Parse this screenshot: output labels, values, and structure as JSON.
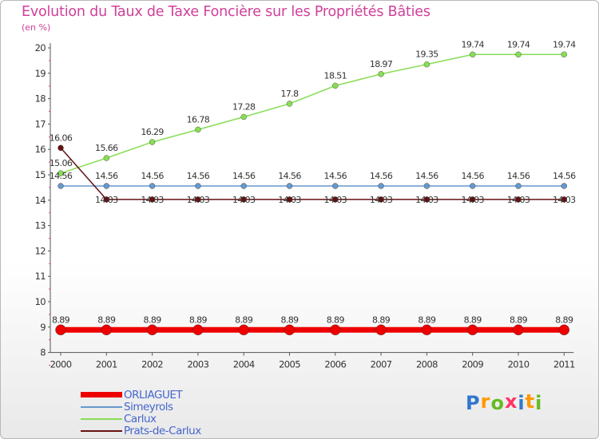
{
  "chart_data": {
    "type": "line",
    "title": "Evolution du Taux de Taxe Foncière sur les Propriétés Bâties",
    "unit_label": "(en %)",
    "xlabel": "",
    "ylabel": "(en %)",
    "categories": [
      "2000",
      "2001",
      "2002",
      "2003",
      "2004",
      "2005",
      "2006",
      "2007",
      "2008",
      "2009",
      "2010",
      "2011"
    ],
    "ylim": [
      8,
      20
    ],
    "yticks": [
      "8",
      "9",
      "10",
      "11",
      "12",
      "13",
      "14",
      "15",
      "16",
      "17",
      "18",
      "19",
      "20"
    ],
    "grid": false,
    "legend_position": "bottom-left",
    "series": [
      {
        "name": "ORLIAGUET",
        "color": "#ee0000",
        "values": [
          8.89,
          8.89,
          8.89,
          8.89,
          8.89,
          8.89,
          8.89,
          8.89,
          8.89,
          8.89,
          8.89,
          8.89
        ],
        "labels": [
          "8.89",
          "8.89",
          "8.89",
          "8.89",
          "8.89",
          "8.89",
          "8.89",
          "8.89",
          "8.89",
          "8.89",
          "8.89",
          "8.89"
        ]
      },
      {
        "name": "Simeyrols",
        "color": "#6699cc",
        "values": [
          14.56,
          14.56,
          14.56,
          14.56,
          14.56,
          14.56,
          14.56,
          14.56,
          14.56,
          14.56,
          14.56,
          14.56
        ],
        "labels": [
          "14.56",
          "14.56",
          "14.56",
          "14.56",
          "14.56",
          "14.56",
          "14.56",
          "14.56",
          "14.56",
          "14.56",
          "14.56",
          "14.56"
        ]
      },
      {
        "name": "Carlux",
        "color": "#88dd55",
        "values": [
          15.06,
          15.66,
          16.29,
          16.78,
          17.28,
          17.8,
          18.51,
          18.97,
          19.35,
          19.74,
          19.74,
          19.74
        ],
        "labels": [
          "15.06",
          "15.66",
          "16.29",
          "16.78",
          "17.28",
          "17.8",
          "18.51",
          "18.97",
          "19.35",
          "19.74",
          "19.74",
          "19.74"
        ]
      },
      {
        "name": "Prats-de-Carlux",
        "color": "#661111",
        "values": [
          16.06,
          14.03,
          14.03,
          14.03,
          14.03,
          14.03,
          14.03,
          14.03,
          14.03,
          14.03,
          14.03,
          14.03
        ],
        "labels": [
          "16.06",
          "14.03",
          "14.03",
          "14.03",
          "14.03",
          "14.03",
          "14.03",
          "14.03",
          "14.03",
          "14.03",
          "14.03",
          "14.03"
        ]
      }
    ]
  },
  "brand": {
    "letters": [
      "P",
      "r",
      "o",
      "x",
      "i",
      "t",
      "i"
    ],
    "colors": [
      "#3377cc",
      "#ff9900",
      "#66bb22",
      "#ff3366",
      "#3377cc",
      "#ff9900",
      "#66bb22"
    ]
  }
}
